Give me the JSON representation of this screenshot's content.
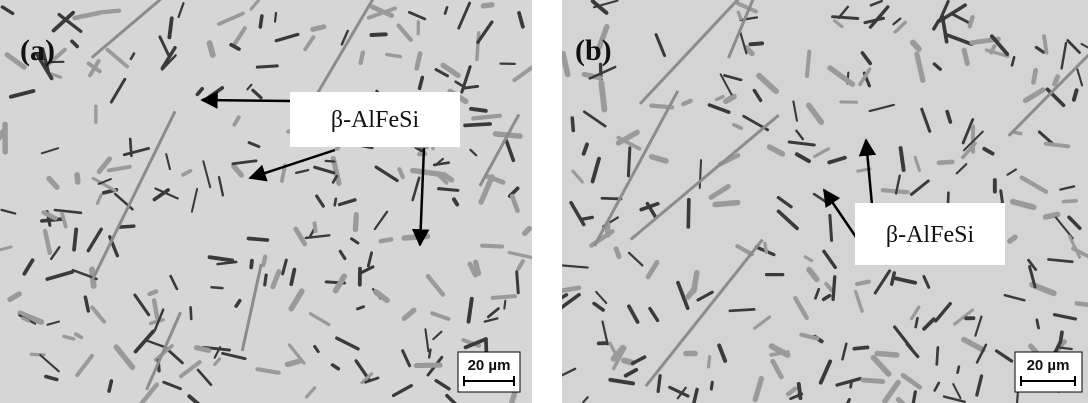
{
  "panels": [
    {
      "label": "(a)",
      "annotation": "β-AlFeSi",
      "scale_bar": "20 µm"
    },
    {
      "label": "(b)",
      "annotation": "β-AlFeSi",
      "scale_bar": "20 µm"
    }
  ]
}
